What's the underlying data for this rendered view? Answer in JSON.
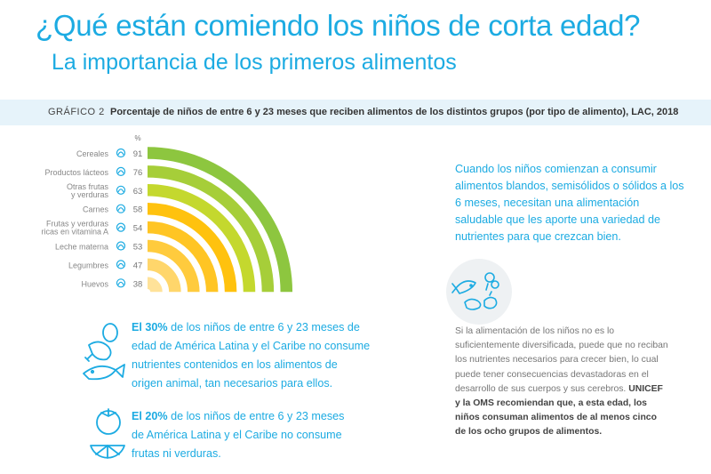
{
  "header": {
    "title": "¿Qué están comiendo los niños de corta edad?",
    "subtitle": "La importancia de los primeros alimentos"
  },
  "chart_header": {
    "label": "GRÁFICO 2",
    "description": "Porcentaje de niños de entre 6 y 23 meses que reciben alimentos de los distintos grupos (por tipo de alimento), LAC, 2018"
  },
  "chart_data": {
    "type": "bar",
    "unit_label": "%",
    "categories": [
      [
        "Cereales"
      ],
      [
        "Productos lácteos"
      ],
      [
        "Otras frutas",
        "y verduras"
      ],
      [
        "Carnes"
      ],
      [
        "Frutas y verduras",
        "ricas en vitamina A"
      ],
      [
        "Leche materna"
      ],
      [
        "Legumbres"
      ],
      [
        "Huevos"
      ]
    ],
    "values": [
      91,
      76,
      63,
      58,
      54,
      53,
      47,
      38
    ],
    "colors": [
      "#8DC63F",
      "#A6CE39",
      "#C4D82E",
      "#FFC20E",
      "#FFC524",
      "#FFCB3D",
      "#FFD66B",
      "#FFE299"
    ],
    "icons": [
      "cereal-icon",
      "dairy-icon",
      "vegetables-icon",
      "meat-icon",
      "vitamin-a-produce-icon",
      "breast-milk-icon",
      "legumes-icon",
      "eggs-icon"
    ]
  },
  "right_note": "Cuando los niños comienzan a consumir alimentos blandos, semisólidos o sólidos a los 6 meses, necesitan una alimentación saludable que les aporte una variedad de nutrientes para que crezcan bien.",
  "grey_note": {
    "text": "Si la alimentación de los niños no es lo suficientemente diversificada, puede que no reciban los nutrientes necesarios para crecer bien, lo cual puede tener consecuencias devastadoras en el desarrollo de sus cuerpos y sus cerebros.",
    "bold": "UNICEF y la OMS recomiendan que, a esta edad, los niños consuman alimentos de al menos cinco de los ocho grupos de alimentos."
  },
  "stats": [
    {
      "bold": "El 30%",
      "text": " de los niños de entre 6 y 23 meses de edad de América Latina y el Caribe no consume nutrientes contenidos en los alimentos de origen animal, tan necesarios para ellos.",
      "icon": "animal-foods-icon"
    },
    {
      "bold": "El 20%",
      "text": " de los niños de entre 6 y 23 meses de América Latina y el Caribe no consume frutas ni verduras.",
      "icon": "fruits-vegetables-icon"
    }
  ],
  "info_icon": "food-groups-circle-icon",
  "colors": {
    "accent": "#1CABE2",
    "band": "#E6F3FA"
  }
}
